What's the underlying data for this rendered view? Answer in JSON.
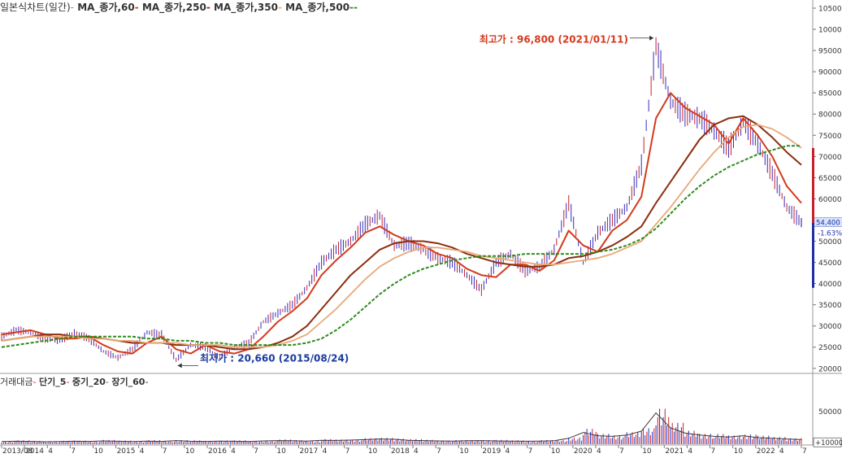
{
  "legend": {
    "price": "일본식차트(일간)",
    "ma60": "MA_종가,60",
    "ma250": "MA_종가,250",
    "ma350": "MA_종가,350",
    "ma500": "MA_종가,500"
  },
  "volume_legend": {
    "title": "거래대금",
    "short": "단기_5",
    "mid": "중기_20",
    "long": "장기_60"
  },
  "annotations": {
    "high": {
      "label": "최고가 : 96,800 (2021/01/11)",
      "value": 96800,
      "date": "2021/01/11"
    },
    "low": {
      "label": "최저가 : 20,660 (2015/08/24)",
      "value": 20660,
      "date": "2015/08/24"
    },
    "current_price": "54,400",
    "current_change": "-1.63%"
  },
  "colors": {
    "candle": "#3a2bb8",
    "ma60": "#d43a1e",
    "ma250": "#8b2e0f",
    "ma350": "#e8a878",
    "ma500": "#2e8b1e",
    "high_label": "#d43a1e",
    "low_label": "#1a3aa0",
    "volume_bar": "#c8202a",
    "volume_bar_alt": "#2030c0"
  },
  "chart_data": {
    "type": "line",
    "title": "",
    "y_scale": "linear",
    "ylim": [
      19000,
      105000
    ],
    "y_ticks": [
      20000,
      25000,
      30000,
      35000,
      40000,
      45000,
      50000,
      55000,
      60000,
      65000,
      70000,
      75000,
      80000,
      85000,
      90000,
      95000,
      100000,
      105000
    ],
    "x_tick_labels": [
      "2013/08",
      "2014",
      "4",
      "7",
      "10",
      "2015",
      "4",
      "7",
      "10",
      "2016",
      "4",
      "7",
      "10",
      "2017",
      "4",
      "7",
      "10",
      "2018",
      "4",
      "7",
      "10",
      "2019",
      "4",
      "7",
      "10",
      "2020",
      "4",
      "7",
      "10",
      "2021",
      "4",
      "7",
      "10",
      "2022",
      "4",
      "7"
    ],
    "x": [
      "2013-08",
      "2013-10",
      "2013-12",
      "2014-02",
      "2014-04",
      "2014-06",
      "2014-08",
      "2014-10",
      "2014-12",
      "2015-02",
      "2015-04",
      "2015-06",
      "2015-08",
      "2015-10",
      "2015-12",
      "2016-02",
      "2016-04",
      "2016-06",
      "2016-08",
      "2016-10",
      "2016-12",
      "2017-02",
      "2017-04",
      "2017-06",
      "2017-08",
      "2017-10",
      "2017-12",
      "2018-02",
      "2018-04",
      "2018-06",
      "2018-08",
      "2018-10",
      "2018-12",
      "2019-02",
      "2019-04",
      "2019-06",
      "2019-08",
      "2019-10",
      "2019-12",
      "2020-02",
      "2020-04",
      "2020-06",
      "2020-08",
      "2020-10",
      "2020-12",
      "2021-02",
      "2021-04",
      "2021-06",
      "2021-08",
      "2021-10",
      "2021-12",
      "2022-02",
      "2022-04",
      "2022-06",
      "2022-08",
      "2022-09"
    ],
    "series": [
      {
        "name": "일본식차트(일간)",
        "values": [
          27500,
          29000,
          28500,
          27000,
          26500,
          28500,
          27000,
          24000,
          22500,
          24500,
          28500,
          28000,
          22000,
          25500,
          25000,
          22500,
          25000,
          26000,
          31000,
          33000,
          35000,
          39000,
          45000,
          48000,
          50000,
          54000,
          56000,
          49000,
          49500,
          48000,
          46000,
          45000,
          42000,
          38500,
          45000,
          47000,
          43000,
          44000,
          48000,
          59000,
          45000,
          52000,
          55000,
          58000,
          68000,
          96000,
          83000,
          80000,
          79000,
          76000,
          72000,
          78000,
          73000,
          66000,
          58000,
          54400
        ]
      },
      {
        "name": "MA_종가,60",
        "values": [
          28000,
          28500,
          29000,
          28000,
          27000,
          27000,
          27500,
          25500,
          24000,
          23500,
          26000,
          27500,
          24500,
          23500,
          25500,
          24000,
          23500,
          24500,
          27500,
          31000,
          33500,
          36500,
          42000,
          45500,
          48500,
          52000,
          53500,
          51500,
          50000,
          49000,
          47000,
          46000,
          43500,
          42000,
          41500,
          44500,
          44500,
          43000,
          45500,
          52500,
          49000,
          47500,
          52500,
          55000,
          60500,
          79000,
          85000,
          81500,
          79500,
          77500,
          73000,
          79000,
          75000,
          70000,
          63000,
          59000
        ]
      },
      {
        "name": "MA_종가,250",
        "values": [
          26500,
          27000,
          27500,
          28000,
          28000,
          27500,
          27500,
          27000,
          26500,
          26000,
          26000,
          26000,
          25500,
          25500,
          25500,
          25000,
          24500,
          24500,
          25000,
          26000,
          27500,
          30000,
          34000,
          38000,
          42000,
          45000,
          48000,
          49500,
          50000,
          50000,
          49500,
          48500,
          47000,
          46000,
          45000,
          44500,
          44000,
          44000,
          44500,
          46000,
          46500,
          47500,
          49000,
          51000,
          53500,
          59000,
          64000,
          69000,
          74000,
          77500,
          79000,
          79500,
          77500,
          74500,
          71000,
          68000
        ]
      },
      {
        "name": "MA_종가,350",
        "values": [
          26500,
          27000,
          27500,
          27500,
          27500,
          27500,
          27000,
          27000,
          26500,
          26500,
          26000,
          26000,
          26000,
          25500,
          25500,
          25500,
          25000,
          25000,
          25000,
          25500,
          26500,
          28000,
          31000,
          34000,
          37500,
          41000,
          44000,
          46000,
          47500,
          48500,
          48500,
          48000,
          47500,
          46500,
          46000,
          45500,
          45000,
          44500,
          44500,
          45000,
          45500,
          46000,
          47000,
          48500,
          50000,
          54000,
          58000,
          62500,
          67000,
          71000,
          74500,
          77000,
          77500,
          76500,
          74500,
          72000
        ]
      },
      {
        "name": "MA_종가,500",
        "values": [
          25000,
          25500,
          26000,
          26500,
          27000,
          27500,
          27500,
          27500,
          27500,
          27500,
          27000,
          27000,
          26500,
          26500,
          26000,
          26000,
          25500,
          25500,
          25500,
          25500,
          25500,
          26000,
          27000,
          29000,
          31500,
          34500,
          37500,
          40000,
          42000,
          43500,
          44500,
          45500,
          46000,
          46500,
          46500,
          46500,
          47000,
          47000,
          47000,
          47000,
          47000,
          47500,
          48000,
          49000,
          50500,
          53000,
          56500,
          60000,
          63000,
          65500,
          67500,
          69000,
          70500,
          71500,
          72500,
          72500
        ]
      }
    ]
  },
  "volume_chart": {
    "type": "bar",
    "ytick_labels": [
      "500000",
      "10000"
    ],
    "ylim": [
      0,
      900000
    ],
    "values": [
      40000,
      45000,
      42000,
      38000,
      40000,
      45000,
      42000,
      50000,
      45000,
      40000,
      48000,
      42000,
      55000,
      45000,
      42000,
      48000,
      45000,
      40000,
      50000,
      55000,
      52000,
      48000,
      60000,
      58000,
      62000,
      70000,
      80000,
      75000,
      60000,
      55000,
      50000,
      48000,
      52000,
      55000,
      50000,
      48000,
      45000,
      48000,
      52000,
      90000,
      180000,
      130000,
      120000,
      140000,
      200000,
      480000,
      250000,
      170000,
      140000,
      120000,
      110000,
      130000,
      100000,
      90000,
      80000,
      70000
    ]
  }
}
